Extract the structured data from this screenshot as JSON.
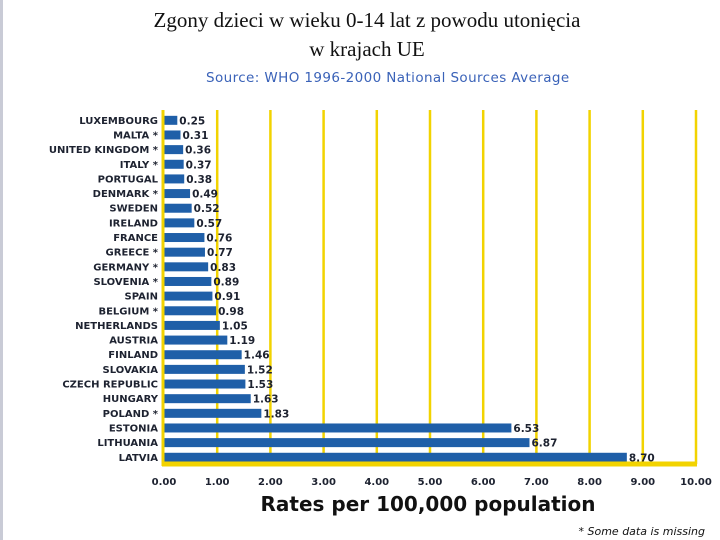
{
  "slide": {
    "title_line1": "Zgony dzieci w wieku 0-14 lat z powodu utonięcia",
    "title_line2": "w krajach UE"
  },
  "colors": {
    "bar": "#1f5fa8",
    "gridline": "#f2d300",
    "axis": "#f2d300"
  },
  "chart_data": {
    "type": "bar",
    "orientation": "horizontal",
    "subtitle": "Source:  WHO  1996-2000 National Sources Average",
    "xlabel": "Rates per 100,000 population",
    "ylabel": "",
    "xlim": [
      0,
      10
    ],
    "x_ticks": [
      "0.00",
      "1.00",
      "2.00",
      "3.00",
      "4.00",
      "5.00",
      "6.00",
      "7.00",
      "8.00",
      "9.00",
      "10.00"
    ],
    "grid": "vertical",
    "footnote": "* Some data is missing",
    "categories": [
      "LUXEMBOURG",
      "MALTA *",
      "UNITED KINGDOM *",
      "ITALY *",
      "PORTUGAL",
      "DENMARK *",
      "SWEDEN",
      "IRELAND",
      "FRANCE",
      "GREECE *",
      "GERMANY *",
      "SLOVENIA *",
      "SPAIN",
      "BELGIUM *",
      "NETHERLANDS",
      "AUSTRIA",
      "FINLAND",
      "SLOVAKIA",
      "CZECH REPUBLIC",
      "HUNGARY",
      "POLAND *",
      "ESTONIA",
      "LITHUANIA",
      "LATVIA"
    ],
    "values": [
      0.25,
      0.31,
      0.36,
      0.37,
      0.38,
      0.49,
      0.52,
      0.57,
      0.76,
      0.77,
      0.83,
      0.89,
      0.91,
      0.98,
      1.05,
      1.19,
      1.46,
      1.52,
      1.53,
      1.63,
      1.83,
      6.53,
      6.87,
      8.7
    ],
    "value_labels": [
      "0.25",
      "0.31",
      "0.36",
      "0.37",
      "0.38",
      "0.49",
      "0.52",
      "0.57",
      "0.76",
      "0.77",
      "0.83",
      "0.89",
      "0.91",
      "0.98",
      "1.05",
      "1.19",
      "1.46",
      "1.52",
      "1.53",
      "1.63",
      "1.83",
      "6.53",
      "6.87",
      "8.70"
    ]
  }
}
